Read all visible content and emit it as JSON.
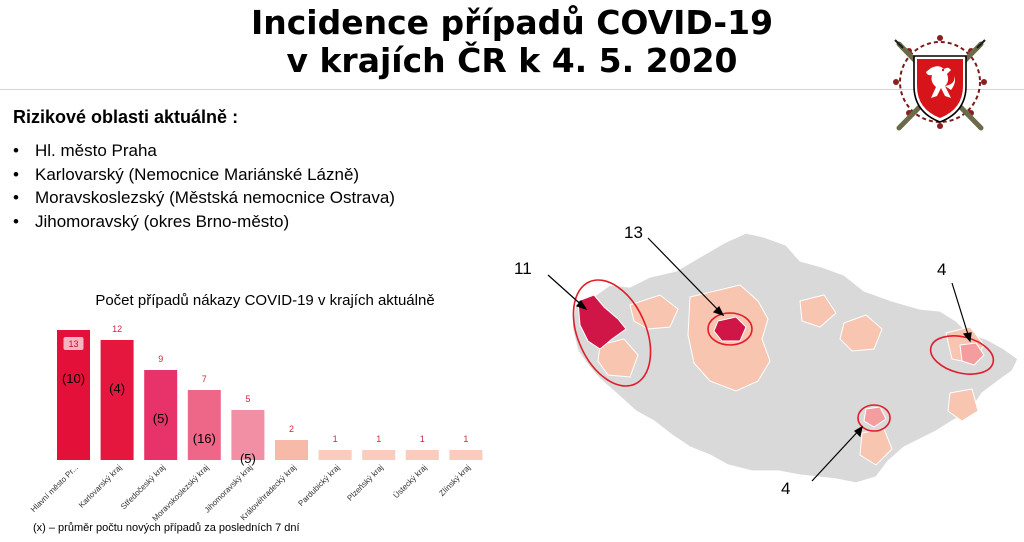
{
  "header": {
    "title_line1": "Incidence případů COVID-19",
    "title_line2": "v krajích ČR k 4. 5. 2020"
  },
  "risk": {
    "heading": "Rizikové oblasti aktuálně :",
    "items": [
      "Hl. město Praha",
      "Karlovarský (Nemocnice Mariánské Lázně)",
      "Moravskoslezský (Městská nemocnice Ostrava)",
      "Jihomoravský (okres Brno-město)"
    ]
  },
  "chart_data": {
    "type": "bar",
    "title": "Počet případů nákazy COVID-19 v krajích aktuálně",
    "categories": [
      "Hlavní město Pr...",
      "Karlovarský kraj",
      "Středočeský kraj",
      "Moravskoslezský kraj",
      "Jihomoravský kraj",
      "Královéhradecký kraj",
      "Pardubický kraj",
      "Plzeňský kraj",
      "Ústecký kraj",
      "Zlínský kraj"
    ],
    "values": [
      13,
      12,
      9,
      7,
      5,
      2,
      1,
      1,
      1,
      1
    ],
    "avg_7days": [
      "(10)",
      "(4)",
      "(5)",
      "(16)",
      "(5)",
      null,
      null,
      null,
      null,
      null
    ],
    "ylim": [
      0,
      13
    ],
    "colors": [
      "#e3103a",
      "#e5173f",
      "#e7336a",
      "#ee6789",
      "#f28fa5",
      "#f7b9a8",
      "#f9ccbc",
      "#f9ccbc",
      "#f9ccbc",
      "#f9ccbc"
    ],
    "value_label_color": "#d0283f"
  },
  "footnote": "(x) – průměr počtu nových případů za posledních 7 dní",
  "map": {
    "callouts": [
      "13",
      "11",
      "4",
      "4"
    ],
    "colors": {
      "base": "#d9d9d9",
      "light": "#f8c5b0",
      "pink": "#f49d9f",
      "red": "#d01547",
      "outline": "#e11d2b"
    }
  }
}
